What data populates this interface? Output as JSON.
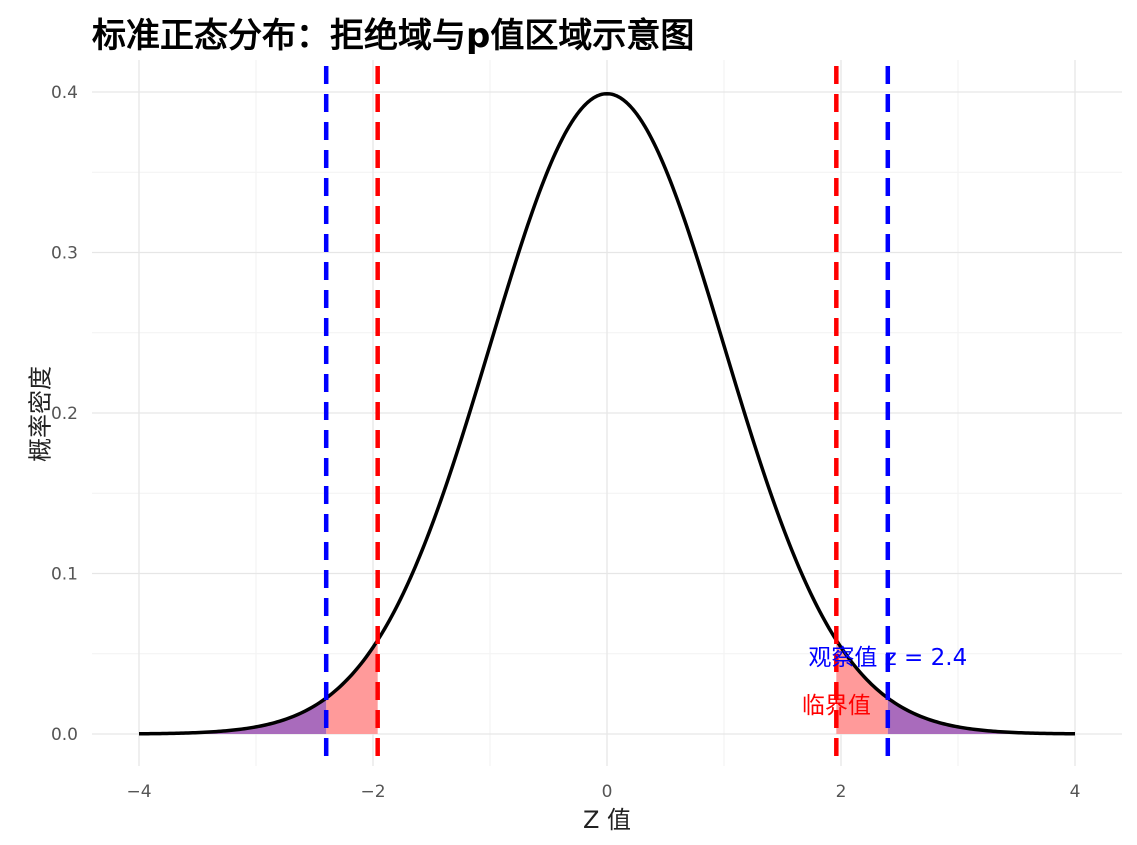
{
  "chart_data": {
    "type": "line",
    "title": "标准正态分布：拒绝域与p值区域示意图",
    "xlabel": "Z 值",
    "ylabel": "概率密度",
    "xlim": [
      -4,
      4
    ],
    "ylim": [
      0,
      0.4
    ],
    "x_ticks": [
      -4,
      -2,
      0,
      2,
      4
    ],
    "x_tick_labels": [
      "−4",
      "−2",
      "0",
      "2",
      "4"
    ],
    "y_ticks": [
      0.0,
      0.1,
      0.2,
      0.3,
      0.4
    ],
    "y_tick_labels": [
      "0.0",
      "0.1",
      "0.2",
      "0.3",
      "0.4"
    ],
    "grid": true,
    "series": [
      {
        "values_note": "",
        "x": [
          -4.0,
          -3.5,
          -3.0,
          -2.576,
          -2.4,
          -2.0,
          -1.96,
          -1.5,
          -1.0,
          -0.5,
          0.0,
          0.5,
          1.0,
          1.5,
          1.96,
          2.0,
          2.4,
          2.576,
          3.0,
          3.5,
          4.0
        ],
        "y": [
          0.0001,
          0.0009,
          0.0044,
          0.0145,
          0.0224,
          0.054,
          0.0584,
          0.1295,
          0.242,
          0.3521,
          0.3989,
          0.3521,
          0.242,
          0.1295,
          0.0584,
          0.054,
          0.0224,
          0.0145,
          0.0044,
          0.0009,
          0.0001
        ]
      }
    ],
    "critical_value": 1.96,
    "observed_z": 2.4,
    "colors": {
      "curve": "#000000",
      "critical": "#ff0000",
      "observed": "#0000ff",
      "rejection_fill": "#ff9a9a",
      "pvalue_fill": "#a96bbc"
    },
    "annotations": [
      {
        "text": "观察值 z = 2.4",
        "x": 2.4,
        "y": 0.048,
        "color": "#0000ff"
      },
      {
        "text": "临界值",
        "x": 1.96,
        "y": 0.018,
        "color": "#ff0000"
      }
    ]
  }
}
